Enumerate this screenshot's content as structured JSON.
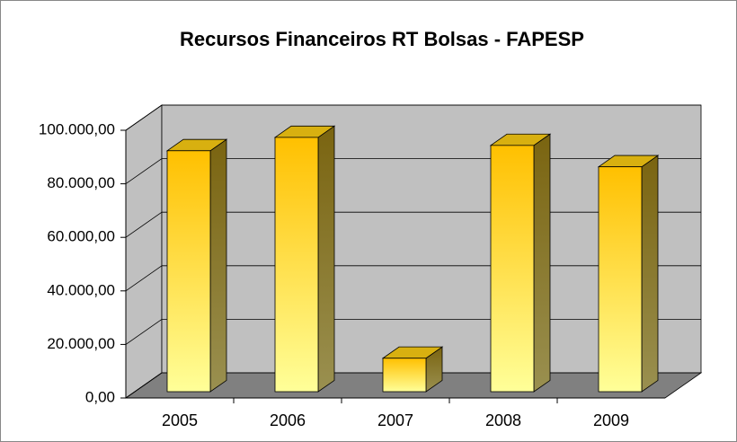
{
  "chart_data": {
    "type": "bar3d",
    "title": "Recursos Financeiros RT Bolsas - FAPESP",
    "categories": [
      "2005",
      "2006",
      "2007",
      "2008",
      "2009"
    ],
    "values": [
      90000,
      95000,
      12500,
      92000,
      84000
    ],
    "color": "#ffc000",
    "ylim": [
      0,
      100000
    ],
    "yticks": [
      {
        "value": 0,
        "label": "0,00"
      },
      {
        "value": 20000,
        "label": "20.000,00"
      },
      {
        "value": 40000,
        "label": "40.000,00"
      },
      {
        "value": 60000,
        "label": "60.000,00"
      },
      {
        "value": 80000,
        "label": "80.000,00"
      },
      {
        "value": 100000,
        "label": "100.000,00"
      }
    ],
    "grid": true
  }
}
